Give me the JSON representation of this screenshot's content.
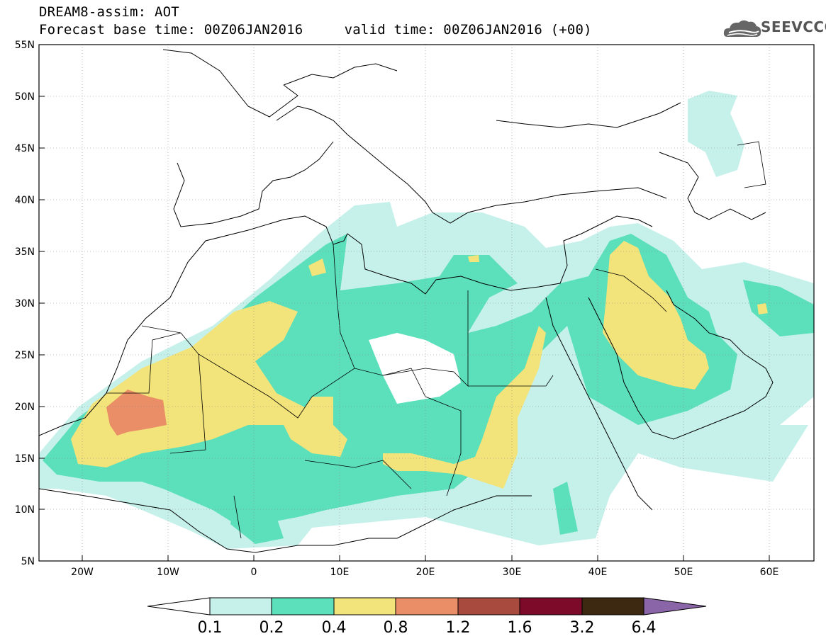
{
  "title": {
    "line1": "DREAM8-assim: AOT",
    "line2": "Forecast base time: 00Z06JAN2016     valid time: 00Z06JAN2016 (+00)"
  },
  "logo": {
    "text": "SEEVCCC",
    "icon": "cloud-logo-icon"
  },
  "map": {
    "latitudes": [
      "55N",
      "50N",
      "45N",
      "40N",
      "35N",
      "30N",
      "25N",
      "20N",
      "15N",
      "10N",
      "5N"
    ],
    "longitudes": [
      "20W",
      "10W",
      "0",
      "10E",
      "20E",
      "30E",
      "40E",
      "50E",
      "60E"
    ],
    "lat_range": [
      5,
      55
    ],
    "lon_range": [
      -25,
      65
    ]
  },
  "colorbar": {
    "labels": [
      "0.1",
      "0.2",
      "0.4",
      "0.8",
      "1.2",
      "1.6",
      "3.2",
      "6.4"
    ],
    "colors": [
      "#c6f1ea",
      "#5ce0bb",
      "#f2e37a",
      "#e98e66",
      "#a84a3e",
      "#7d0a28",
      "#3d2812",
      "#8a66a8"
    ]
  }
}
